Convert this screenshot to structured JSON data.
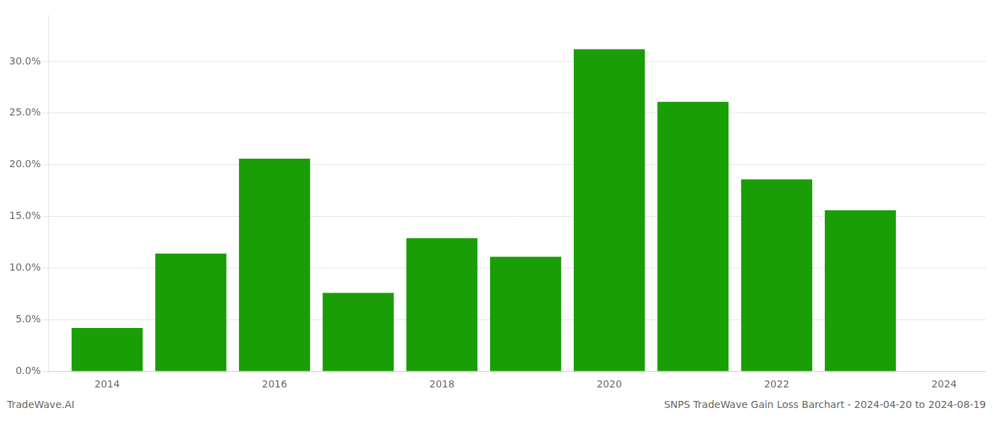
{
  "chart_data": {
    "type": "bar",
    "x": [
      2014,
      2015,
      2016,
      2017,
      2018,
      2019,
      2020,
      2021,
      2022,
      2023
    ],
    "values": [
      0.042,
      0.114,
      0.206,
      0.076,
      0.129,
      0.111,
      0.312,
      0.261,
      0.186,
      0.156
    ],
    "color": "#1a9e06",
    "xlim": [
      2013.3,
      2024.5
    ],
    "xticks": [
      2014,
      2016,
      2018,
      2020,
      2022,
      2024
    ],
    "ylim": [
      0,
      0.345
    ],
    "yticks": [
      {
        "value": 0.0,
        "label": "0.0%"
      },
      {
        "value": 0.05,
        "label": "5.0%"
      },
      {
        "value": 0.1,
        "label": "10.0%"
      },
      {
        "value": 0.15,
        "label": "15.0%"
      },
      {
        "value": 0.2,
        "label": "20.0%"
      },
      {
        "value": 0.25,
        "label": "25.0%"
      },
      {
        "value": 0.3,
        "label": "30.0%"
      }
    ],
    "grid": true,
    "annotations": [
      "TradeWave.AI",
      "SNPS TradeWave Gain Loss Barchart - 2024-04-20 to 2024-08-19"
    ]
  }
}
